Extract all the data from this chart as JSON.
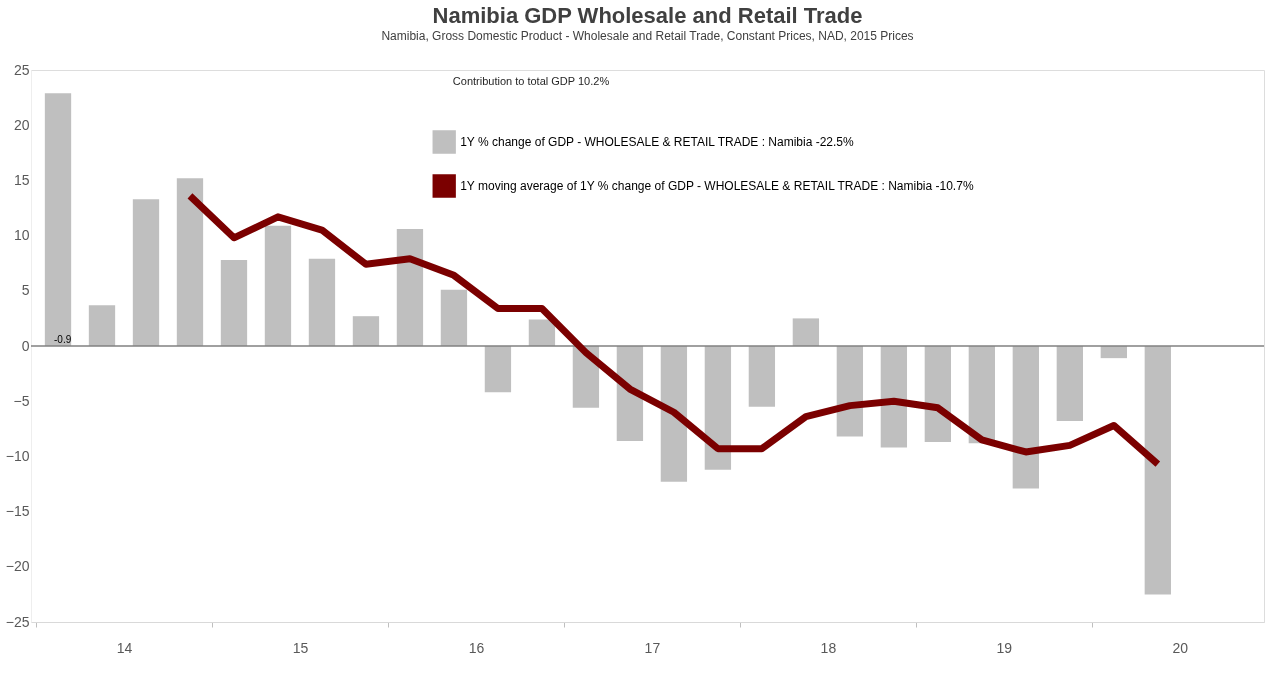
{
  "chart_data": {
    "type": "bar",
    "title": "Namibia GDP Wholesale and Retail Trade",
    "subtitle": "Namibia, Gross Domestic Product - Wholesale and Retail Trade, Constant Prices, NAD, 2015 Prices",
    "annotations": [
      "Contribution to total GDP 10.2%",
      {
        "text": "-0.9",
        "x": 13.625,
        "y": 0
      }
    ],
    "x": [
      13.625,
      13.875,
      14.125,
      14.375,
      14.625,
      14.875,
      15.125,
      15.375,
      15.625,
      15.875,
      16.125,
      16.375,
      16.625,
      16.875,
      17.125,
      17.375,
      17.625,
      17.875,
      18.125,
      18.375,
      18.625,
      18.875,
      19.125,
      19.375,
      19.625,
      19.875
    ],
    "series": [
      {
        "name": "1Y % change of GDP - WHOLESALE & RETAIL TRADE : Namibia -22.5%",
        "color": "#bfbfbf",
        "values": [
          22.9,
          3.7,
          13.3,
          15.2,
          7.8,
          10.9,
          7.9,
          2.7,
          10.6,
          5.1,
          -4.2,
          2.4,
          -5.6,
          -8.6,
          -12.3,
          -11.2,
          -5.5,
          2.5,
          -8.2,
          -9.2,
          -8.7,
          -8.8,
          -12.9,
          -6.8,
          -1.1,
          -22.5
        ]
      },
      {
        "name": "1Y moving average of 1Y % change of GDP - WHOLESALE & RETAIL TRADE : Namibia -10.7%",
        "type": "line",
        "color": "#7b0000",
        "values": [
          null,
          null,
          null,
          13.6,
          9.8,
          11.7,
          10.5,
          7.4,
          7.9,
          6.4,
          3.4,
          3.4,
          -0.6,
          -3.9,
          -6.0,
          -9.3,
          -9.3,
          -6.4,
          -5.4,
          -5.0,
          -5.6,
          -8.5,
          -9.6,
          -9.0,
          -7.2,
          -10.7
        ]
      }
    ],
    "xlim": [
      13.5,
      20.45
    ],
    "xticks": [
      {
        "value": 13.5,
        "label": null
      },
      14,
      {
        "value": 14.5,
        "label": null
      },
      15,
      {
        "value": 15.5,
        "label": null
      },
      16,
      {
        "value": 16.5,
        "label": null
      },
      17,
      {
        "value": 17.5,
        "label": null
      },
      18,
      {
        "value": 18.5,
        "label": null
      },
      19,
      {
        "value": 19.5,
        "label": null
      },
      20
    ],
    "ylim": [
      -25,
      25
    ],
    "yticks": [
      -25,
      -20,
      -15,
      -10,
      -5,
      0,
      5,
      10,
      15,
      20,
      25
    ],
    "ref_lines": [
      {
        "axis": "y",
        "value": 0,
        "color": "#808080"
      }
    ],
    "grid": false,
    "legend": "top",
    "line_style": "solid",
    "marker": "none"
  }
}
